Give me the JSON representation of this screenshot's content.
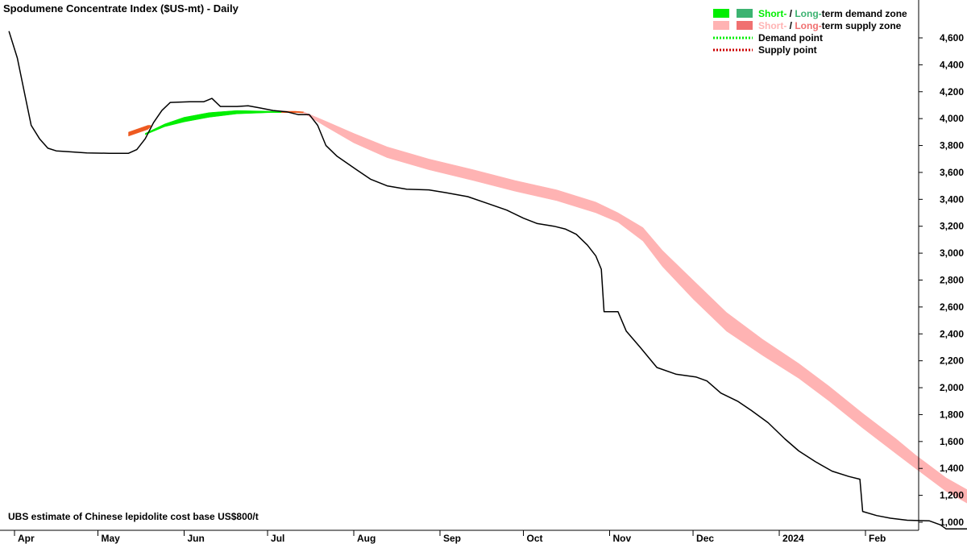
{
  "chart_data": {
    "type": "line",
    "title": "Spodumene Concentrate Index ($US-mt) - Daily",
    "annotation": "UBS estimate of Chinese lepidolite cost base US$800/t",
    "reference_line": {
      "value": 800,
      "color": "#cc0000"
    },
    "ylim": [
      800,
      4700
    ],
    "y_ticks": [
      800,
      1000,
      1200,
      1400,
      1600,
      1800,
      2000,
      2200,
      2400,
      2600,
      2800,
      3000,
      3200,
      3400,
      3600,
      3800,
      4000,
      4200,
      4400,
      4600
    ],
    "x_ticks": [
      {
        "label": "Apr",
        "date": "2023-04-01"
      },
      {
        "label": "May",
        "date": "2023-05-01"
      },
      {
        "label": "Jun",
        "date": "2023-06-01"
      },
      {
        "label": "Jul",
        "date": "2023-07-01"
      },
      {
        "label": "Aug",
        "date": "2023-08-01"
      },
      {
        "label": "Sep",
        "date": "2023-09-01"
      },
      {
        "label": "Oct",
        "date": "2023-10-01"
      },
      {
        "label": "Nov",
        "date": "2023-11-01"
      },
      {
        "label": "Dec",
        "date": "2023-12-01"
      },
      {
        "label": "2024",
        "date": "2024-01-01"
      },
      {
        "label": "Feb",
        "date": "2024-02-01"
      }
    ],
    "legend": {
      "placement": "top-right",
      "items": [
        {
          "short_label": "Short-",
          "sep": " / ",
          "long_label": "Long-",
          "rest": "term demand zone",
          "short_color": "#00ee00",
          "long_color": "#3cb371",
          "kind": "zone"
        },
        {
          "short_label": "Short-",
          "sep": " / ",
          "long_label": "Long-",
          "rest": "term supply zone",
          "short_color": "#ffb3b3",
          "long_color": "#f07070",
          "kind": "zone"
        },
        {
          "label": "Demand point",
          "color": "#00ee00",
          "kind": "dotted"
        },
        {
          "label": "Supply point",
          "color": "#cc0000",
          "kind": "dotted"
        }
      ]
    },
    "series": [
      {
        "name": "Spodumene Concentrate Index",
        "color": "#000000",
        "points": [
          [
            "2023-03-30",
            4650
          ],
          [
            "2023-04-02",
            4450
          ],
          [
            "2023-04-05",
            4150
          ],
          [
            "2023-04-07",
            3950
          ],
          [
            "2023-04-10",
            3850
          ],
          [
            "2023-04-13",
            3780
          ],
          [
            "2023-04-16",
            3760
          ],
          [
            "2023-04-20",
            3755
          ],
          [
            "2023-04-27",
            3745
          ],
          [
            "2023-05-05",
            3742
          ],
          [
            "2023-05-12",
            3742
          ],
          [
            "2023-05-15",
            3770
          ],
          [
            "2023-05-18",
            3850
          ],
          [
            "2023-05-21",
            3970
          ],
          [
            "2023-05-24",
            4060
          ],
          [
            "2023-05-27",
            4120
          ],
          [
            "2023-06-03",
            4125
          ],
          [
            "2023-06-08",
            4125
          ],
          [
            "2023-06-11",
            4150
          ],
          [
            "2023-06-14",
            4090
          ],
          [
            "2023-06-20",
            4090
          ],
          [
            "2023-06-24",
            4095
          ],
          [
            "2023-06-28",
            4080
          ],
          [
            "2023-07-03",
            4060
          ],
          [
            "2023-07-08",
            4050
          ],
          [
            "2023-07-12",
            4030
          ],
          [
            "2023-07-16",
            4030
          ],
          [
            "2023-07-19",
            3950
          ],
          [
            "2023-07-22",
            3800
          ],
          [
            "2023-07-26",
            3720
          ],
          [
            "2023-08-02",
            3620
          ],
          [
            "2023-08-07",
            3550
          ],
          [
            "2023-08-13",
            3500
          ],
          [
            "2023-08-20",
            3475
          ],
          [
            "2023-08-28",
            3470
          ],
          [
            "2023-09-03",
            3450
          ],
          [
            "2023-09-11",
            3420
          ],
          [
            "2023-09-18",
            3370
          ],
          [
            "2023-09-25",
            3320
          ],
          [
            "2023-10-01",
            3260
          ],
          [
            "2023-10-06",
            3220
          ],
          [
            "2023-10-12",
            3200
          ],
          [
            "2023-10-16",
            3180
          ],
          [
            "2023-10-20",
            3140
          ],
          [
            "2023-10-24",
            3060
          ],
          [
            "2023-10-27",
            2980
          ],
          [
            "2023-10-29",
            2880
          ],
          [
            "2023-10-30",
            2565
          ],
          [
            "2023-11-04",
            2565
          ],
          [
            "2023-11-07",
            2420
          ],
          [
            "2023-11-12",
            2300
          ],
          [
            "2023-11-18",
            2150
          ],
          [
            "2023-11-25",
            2100
          ],
          [
            "2023-12-02",
            2080
          ],
          [
            "2023-12-06",
            2050
          ],
          [
            "2023-12-11",
            1960
          ],
          [
            "2023-12-17",
            1900
          ],
          [
            "2023-12-22",
            1830
          ],
          [
            "2023-12-28",
            1740
          ],
          [
            "2024-01-03",
            1620
          ],
          [
            "2024-01-08",
            1530
          ],
          [
            "2024-01-14",
            1450
          ],
          [
            "2024-01-20",
            1380
          ],
          [
            "2024-01-26",
            1340
          ],
          [
            "2024-01-30",
            1320
          ],
          [
            "2024-01-31",
            1080
          ],
          [
            "2024-02-05",
            1050
          ],
          [
            "2024-02-10",
            1030
          ],
          [
            "2024-02-16",
            1015
          ],
          [
            "2024-02-24",
            1010
          ],
          [
            "2024-02-28",
            980
          ],
          [
            "2024-03-01",
            950
          ],
          [
            "2024-03-10",
            950
          ]
        ]
      },
      {
        "name": "Demand zone",
        "color": "#00ee00",
        "band": [
          [
            "2023-05-18",
            3890,
            3880
          ],
          [
            "2023-05-25",
            3960,
            3940
          ],
          [
            "2023-06-01",
            4010,
            3975
          ],
          [
            "2023-06-10",
            4045,
            4010
          ],
          [
            "2023-06-20",
            4060,
            4035
          ],
          [
            "2023-07-02",
            4055,
            4045
          ],
          [
            "2023-07-08",
            4050,
            4045
          ]
        ]
      },
      {
        "name": "Demand zone edge",
        "color": "#ee5a20",
        "band": [
          [
            "2023-05-12",
            3900,
            3870
          ],
          [
            "2023-05-19",
            3950,
            3920
          ],
          [
            "2023-05-20",
            3950,
            3940
          ]
        ],
        "band2": [
          [
            "2023-07-06",
            4055,
            4045
          ],
          [
            "2023-07-11",
            4055,
            4045
          ],
          [
            "2023-07-14",
            4050,
            4042
          ]
        ]
      },
      {
        "name": "Supply zone",
        "color": "#ffb3b3",
        "band": [
          [
            "2023-07-14",
            4050,
            4040
          ],
          [
            "2023-07-22",
            3980,
            3940
          ],
          [
            "2023-08-01",
            3890,
            3820
          ],
          [
            "2023-08-13",
            3790,
            3710
          ],
          [
            "2023-08-28",
            3700,
            3620
          ],
          [
            "2023-09-13",
            3620,
            3540
          ],
          [
            "2023-09-28",
            3540,
            3460
          ],
          [
            "2023-10-13",
            3470,
            3390
          ],
          [
            "2023-10-27",
            3380,
            3300
          ],
          [
            "2023-11-04",
            3300,
            3230
          ],
          [
            "2023-11-13",
            3190,
            3090
          ],
          [
            "2023-11-20",
            3020,
            2900
          ],
          [
            "2023-12-01",
            2800,
            2660
          ],
          [
            "2023-12-13",
            2560,
            2420
          ],
          [
            "2023-12-26",
            2360,
            2240
          ],
          [
            "2024-01-08",
            2180,
            2070
          ],
          [
            "2024-01-19",
            2010,
            1900
          ],
          [
            "2024-01-31",
            1810,
            1700
          ],
          [
            "2024-02-12",
            1620,
            1510
          ],
          [
            "2024-02-19",
            1500,
            1400
          ],
          [
            "2024-03-01",
            1330,
            1230
          ],
          [
            "2024-03-13",
            1190,
            1090
          ],
          [
            "2024-03-25",
            1115,
            1020
          ]
        ]
      }
    ]
  }
}
